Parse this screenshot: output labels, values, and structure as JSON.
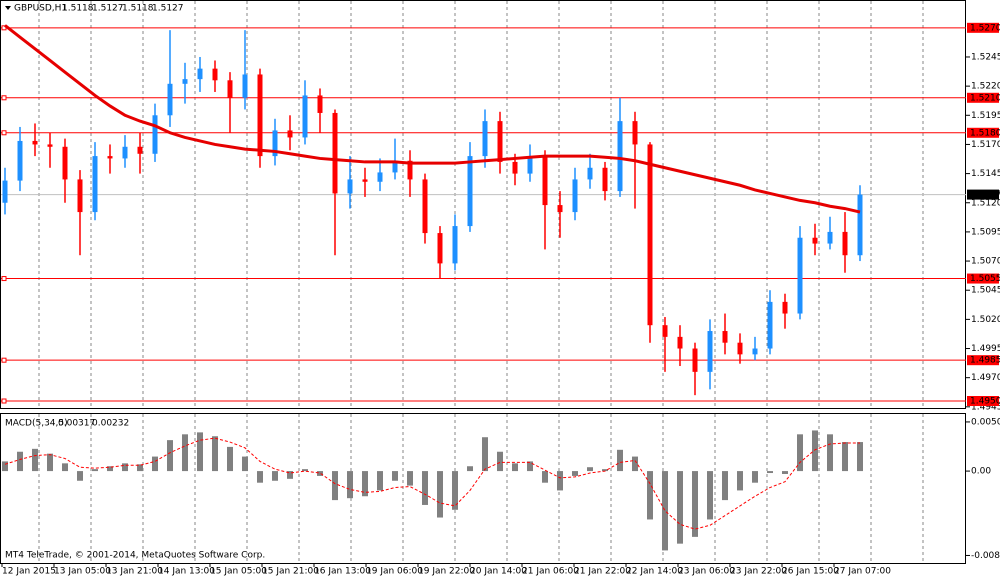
{
  "chart_data": [
    {
      "type": "candlestick",
      "symbol": "GBPUSD,H1",
      "ohlc": [
        1.5118,
        1.5127,
        1.5118,
        1.5127
      ],
      "open": [
        1.512,
        1.5139,
        1.5173,
        1.517,
        1.5168,
        1.514,
        1.5112,
        1.516,
        1.5158,
        1.5168,
        1.5162,
        1.5195,
        1.5222,
        1.5226,
        1.5235,
        1.5225,
        1.521,
        1.523,
        1.516,
        1.5182,
        1.5176,
        1.5212,
        1.5197,
        1.5128,
        1.514,
        1.5138,
        1.5146,
        1.5156,
        1.514,
        1.5094,
        1.5068,
        1.51,
        1.516,
        1.519,
        1.5155,
        1.5145,
        1.516,
        1.5118,
        1.5112,
        1.514,
        1.515,
        1.513,
        1.519,
        1.517,
        1.5015,
        1.5005,
        1.4995,
        1.4975,
        1.501,
        1.5,
        1.499,
        1.4995,
        1.5035,
        1.5025,
        1.509,
        1.5085,
        1.5095,
        1.5075
      ],
      "high": [
        1.515,
        1.5185,
        1.5188,
        1.518,
        1.5175,
        1.5148,
        1.5172,
        1.517,
        1.5178,
        1.518,
        1.5205,
        1.5268,
        1.524,
        1.5245,
        1.5242,
        1.5232,
        1.5268,
        1.5235,
        1.5192,
        1.5195,
        1.5225,
        1.5218,
        1.52,
        1.516,
        1.515,
        1.5158,
        1.5175,
        1.5165,
        1.5145,
        1.51,
        1.511,
        1.5172,
        1.52,
        1.5198,
        1.5162,
        1.517,
        1.5165,
        1.513,
        1.515,
        1.5162,
        1.5155,
        1.521,
        1.5198,
        1.5172,
        1.5022,
        1.5015,
        1.5,
        1.502,
        1.5025,
        1.5008,
        1.5005,
        1.5045,
        1.5042,
        1.51,
        1.5102,
        1.5108,
        1.5112,
        1.5135
      ],
      "low": [
        1.511,
        1.513,
        1.516,
        1.515,
        1.512,
        1.5075,
        1.5105,
        1.5145,
        1.515,
        1.5145,
        1.5155,
        1.5185,
        1.5205,
        1.5215,
        1.5215,
        1.518,
        1.52,
        1.515,
        1.5152,
        1.5165,
        1.517,
        1.518,
        1.5075,
        1.5115,
        1.5125,
        1.513,
        1.514,
        1.5125,
        1.5085,
        1.5055,
        1.5062,
        1.5095,
        1.515,
        1.5145,
        1.5135,
        1.5138,
        1.508,
        1.509,
        1.5105,
        1.5132,
        1.5122,
        1.5125,
        1.5115,
        1.5,
        1.4975,
        1.498,
        1.4955,
        1.496,
        1.499,
        1.4982,
        1.4985,
        1.499,
        1.5012,
        1.502,
        1.5075,
        1.508,
        1.506,
        1.507
      ],
      "close": [
        1.5139,
        1.5173,
        1.517,
        1.5168,
        1.514,
        1.5112,
        1.516,
        1.5158,
        1.5168,
        1.5162,
        1.5195,
        1.5222,
        1.5226,
        1.5235,
        1.5225,
        1.521,
        1.523,
        1.516,
        1.5182,
        1.5176,
        1.5212,
        1.5197,
        1.5128,
        1.514,
        1.5138,
        1.5146,
        1.5156,
        1.514,
        1.5094,
        1.5068,
        1.51,
        1.516,
        1.519,
        1.5155,
        1.5145,
        1.516,
        1.5118,
        1.5112,
        1.514,
        1.515,
        1.513,
        1.519,
        1.517,
        1.5015,
        1.5005,
        1.4995,
        1.4975,
        1.501,
        1.5,
        1.499,
        1.4995,
        1.5035,
        1.5025,
        1.509,
        1.5085,
        1.5095,
        1.5075,
        1.5127
      ],
      "ma": [
        1.5272,
        1.5262,
        1.5252,
        1.5242,
        1.5232,
        1.5222,
        1.5212,
        1.5203,
        1.5195,
        1.519,
        1.5186,
        1.518,
        1.5176,
        1.5173,
        1.517,
        1.5168,
        1.5166,
        1.5165,
        1.5164,
        1.5162,
        1.516,
        1.5158,
        1.5157,
        1.5156,
        1.5155,
        1.5155,
        1.5155,
        1.5154,
        1.5154,
        1.5154,
        1.5154,
        1.5155,
        1.5156,
        1.5157,
        1.5158,
        1.5159,
        1.516,
        1.516,
        1.516,
        1.516,
        1.5159,
        1.5158,
        1.5156,
        1.5153,
        1.515,
        1.5147,
        1.5144,
        1.5141,
        1.5138,
        1.5135,
        1.5131,
        1.5128,
        1.5125,
        1.5122,
        1.512,
        1.5117,
        1.5115,
        1.5112
      ],
      "bull_color": "#1e90ff",
      "bear_color": "#ff0000",
      "ma_color": "#e60000",
      "level_color": "#ff0000",
      "levels": [
        {
          "value": 1.527,
          "label": "1.5270"
        },
        {
          "value": 1.521,
          "label": "1.5210"
        },
        {
          "value": 1.518,
          "label": "1.5180"
        },
        1.5055,
        1.4985,
        {
          "value": 1.495,
          "label": "1.4950"
        }
      ],
      "ylim": [
        1.4944,
        1.5293
      ],
      "yticks": [
        1.5245,
        {
          "value": 1.522,
          "label": "1.5220"
        },
        1.5195,
        {
          "value": 1.517,
          "label": "1.5170"
        },
        1.5145,
        {
          "value": 1.512,
          "label": "1.5120"
        },
        1.5095,
        {
          "value": 1.507,
          "label": "1.5070"
        },
        1.5045,
        {
          "value": 1.502,
          "label": "1.5020"
        },
        1.4995,
        {
          "value": 1.497,
          "label": "1.4970"
        },
        1.4945
      ],
      "xlabels": [
        "12 Jan 2015",
        "13 Jan 05:00",
        "13 Jan 21:00",
        "14 Jan 13:00",
        "15 Jan 05:00",
        "15 Jan 21:00",
        "16 Jan 13:00",
        "19 Jan 06:00",
        "19 Jan 22:00",
        "20 Jan 14:00",
        "21 Jan 06:00",
        "21 Jan 22:00",
        "22 Jan 14:00",
        "23 Jan 06:00",
        "23 Jan 22:00",
        "26 Jan 15:00",
        "27 Jan 07:00"
      ],
      "grid": true
    },
    {
      "type": "macd",
      "label": "MACD(5,34,5)",
      "current": [
        0.00317,
        0.00232
      ],
      "histogram": [
        0.001,
        0.002,
        0.0023,
        0.0018,
        0.0008,
        -0.001,
        0.0002,
        0.0005,
        0.0008,
        0.0007,
        0.0015,
        0.0032,
        0.0038,
        0.004,
        0.0036,
        0.0025,
        0.0015,
        -0.0012,
        -0.001,
        -0.0008,
        0.0002,
        -0.0005,
        -0.003,
        -0.0028,
        -0.0026,
        -0.002,
        -0.001,
        -0.0015,
        -0.0035,
        -0.0048,
        -0.004,
        0.0005,
        0.0035,
        0.002,
        0.0008,
        0.001,
        -0.0012,
        -0.002,
        -0.0005,
        0.0004,
        0.0002,
        0.0022,
        0.0015,
        -0.005,
        -0.0082,
        -0.0075,
        -0.0068,
        -0.005,
        -0.003,
        -0.002,
        -0.0012,
        -0.0002,
        -0.0003,
        0.0038,
        0.0042,
        0.0038,
        0.003,
        0.003
      ],
      "signal": [
        0.0007,
        0.0012,
        0.0016,
        0.0017,
        0.0013,
        0.0004,
        0.0003,
        0.0004,
        0.0006,
        0.0006,
        0.001,
        0.0019,
        0.0026,
        0.0032,
        0.0034,
        0.003,
        0.0024,
        0.001,
        0.0002,
        -0.0002,
        0,
        -0.0002,
        -0.0013,
        -0.0019,
        -0.0022,
        -0.0021,
        -0.0017,
        -0.0016,
        -0.0024,
        -0.0033,
        -0.0036,
        -0.002,
        0.0002,
        0.0009,
        0.0009,
        0.0009,
        0.0001,
        -0.0007,
        -0.0006,
        -0.0002,
        0,
        0.0009,
        0.0011,
        -0.0013,
        -0.0041,
        -0.0055,
        -0.006,
        -0.0056,
        -0.0046,
        -0.0036,
        -0.0026,
        -0.0017,
        -0.0011,
        0.0009,
        0.0022,
        0.0028,
        0.0029,
        0.0029
      ],
      "histogram_color": "#808080",
      "signal_color": "#ff0000",
      "ylim": [
        -0.0095,
        0.0059
      ],
      "yticks": [
        0.00508,
        {
          "value": 0,
          "label": "0.00"
        },
        -0.00872
      ]
    },
    {
      "footer": "MT4 TeleTrade, © 2001-2014, MetaQuotes Software Corp."
    }
  ]
}
